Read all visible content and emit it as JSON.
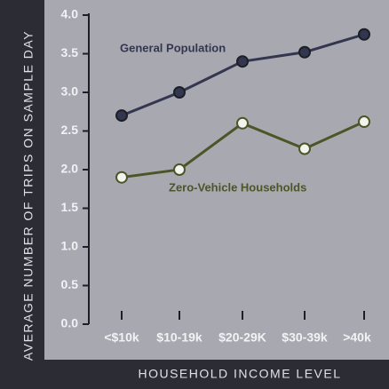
{
  "chart_data": {
    "type": "line",
    "y_label": "AVERAGE NUMBER OF TRIPS ON SAMPLE DAY",
    "x_label": "HOUSEHOLD INCOME LEVEL",
    "categories": [
      "<$10k",
      "$10-19k",
      "$20-29K",
      "$30-39k",
      ">40k"
    ],
    "series": [
      {
        "name": "General Population",
        "color": "#33364f",
        "values": [
          2.7,
          3.0,
          3.4,
          3.52,
          3.75
        ]
      },
      {
        "name": "Zero-Vehicle Households",
        "color": "#4a5628",
        "values": [
          1.9,
          2.0,
          2.6,
          2.27,
          2.62
        ]
      }
    ],
    "ylim": [
      0,
      4
    ],
    "yticks": [
      {
        "value": 0,
        "label": "0.0"
      },
      0.5,
      {
        "value": 1,
        "label": "1.0"
      },
      1.5,
      {
        "value": 2,
        "label": "2.0"
      },
      2.5,
      {
        "value": 3,
        "label": "3.0"
      },
      3.5,
      {
        "value": 4,
        "label": "4.0"
      }
    ],
    "grid": false
  }
}
